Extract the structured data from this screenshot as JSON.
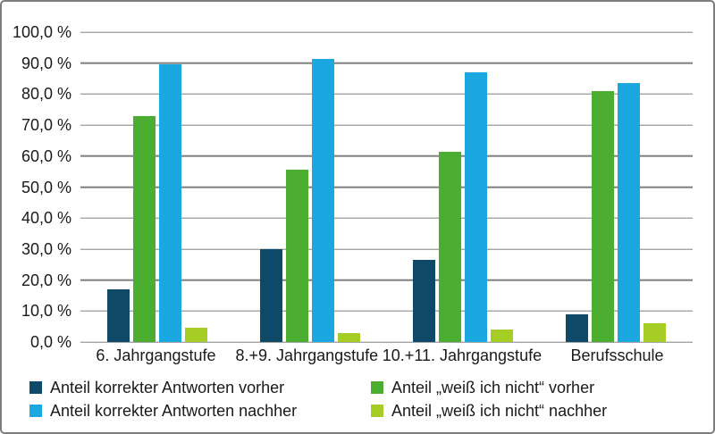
{
  "chart_data": {
    "type": "bar",
    "title": "",
    "categories": [
      "6. Jahrgangstufe",
      "8.+9. Jahrgangstufe",
      "10.+11. Jahrgangstufe",
      "Berufsschule"
    ],
    "series": [
      {
        "name": "Anteil korrekter Antworten vorher",
        "color": "#0e4a68",
        "values": [
          17.0,
          30.0,
          26.5,
          9.0
        ]
      },
      {
        "name": "Anteil „weiß ich nicht“ vorher",
        "color": "#4bae30",
        "values": [
          73.0,
          55.5,
          61.5,
          81.0
        ]
      },
      {
        "name": "Anteil korrekter Antworten nachher",
        "color": "#1ba8e0",
        "values": [
          89.5,
          91.5,
          87.0,
          83.5
        ]
      },
      {
        "name": "Anteil „weiß ich nicht“ nachher",
        "color": "#a5cd26",
        "values": [
          4.5,
          3.0,
          4.0,
          6.0
        ]
      }
    ],
    "y_axis": {
      "min": 0,
      "max": 100,
      "step": 10,
      "tick_labels": [
        "100,0 %",
        "90,0 %",
        "80,0 %",
        "70,0 %",
        "60,0 %",
        "50,0 %",
        "40,0 %",
        "30,0 %",
        "20,0 %",
        "10,0 %",
        "0,0 %"
      ]
    },
    "grid": true,
    "legend_position": "bottom"
  },
  "legend": {
    "items": [
      {
        "label": "Anteil korrekter Antworten vorher",
        "color": "#0e4a68"
      },
      {
        "label": "Anteil korrekter Antworten nachher",
        "color": "#1ba8e0"
      },
      {
        "label": "Anteil „weiß ich nicht“ vorher",
        "color": "#4bae30"
      },
      {
        "label": "Anteil „weiß ich nicht“ nachher",
        "color": "#a5cd26"
      }
    ]
  },
  "colors": {
    "gridline": "#7f7f7f",
    "frame_border": "#7d7d7d",
    "text": "#1a1a1a"
  }
}
